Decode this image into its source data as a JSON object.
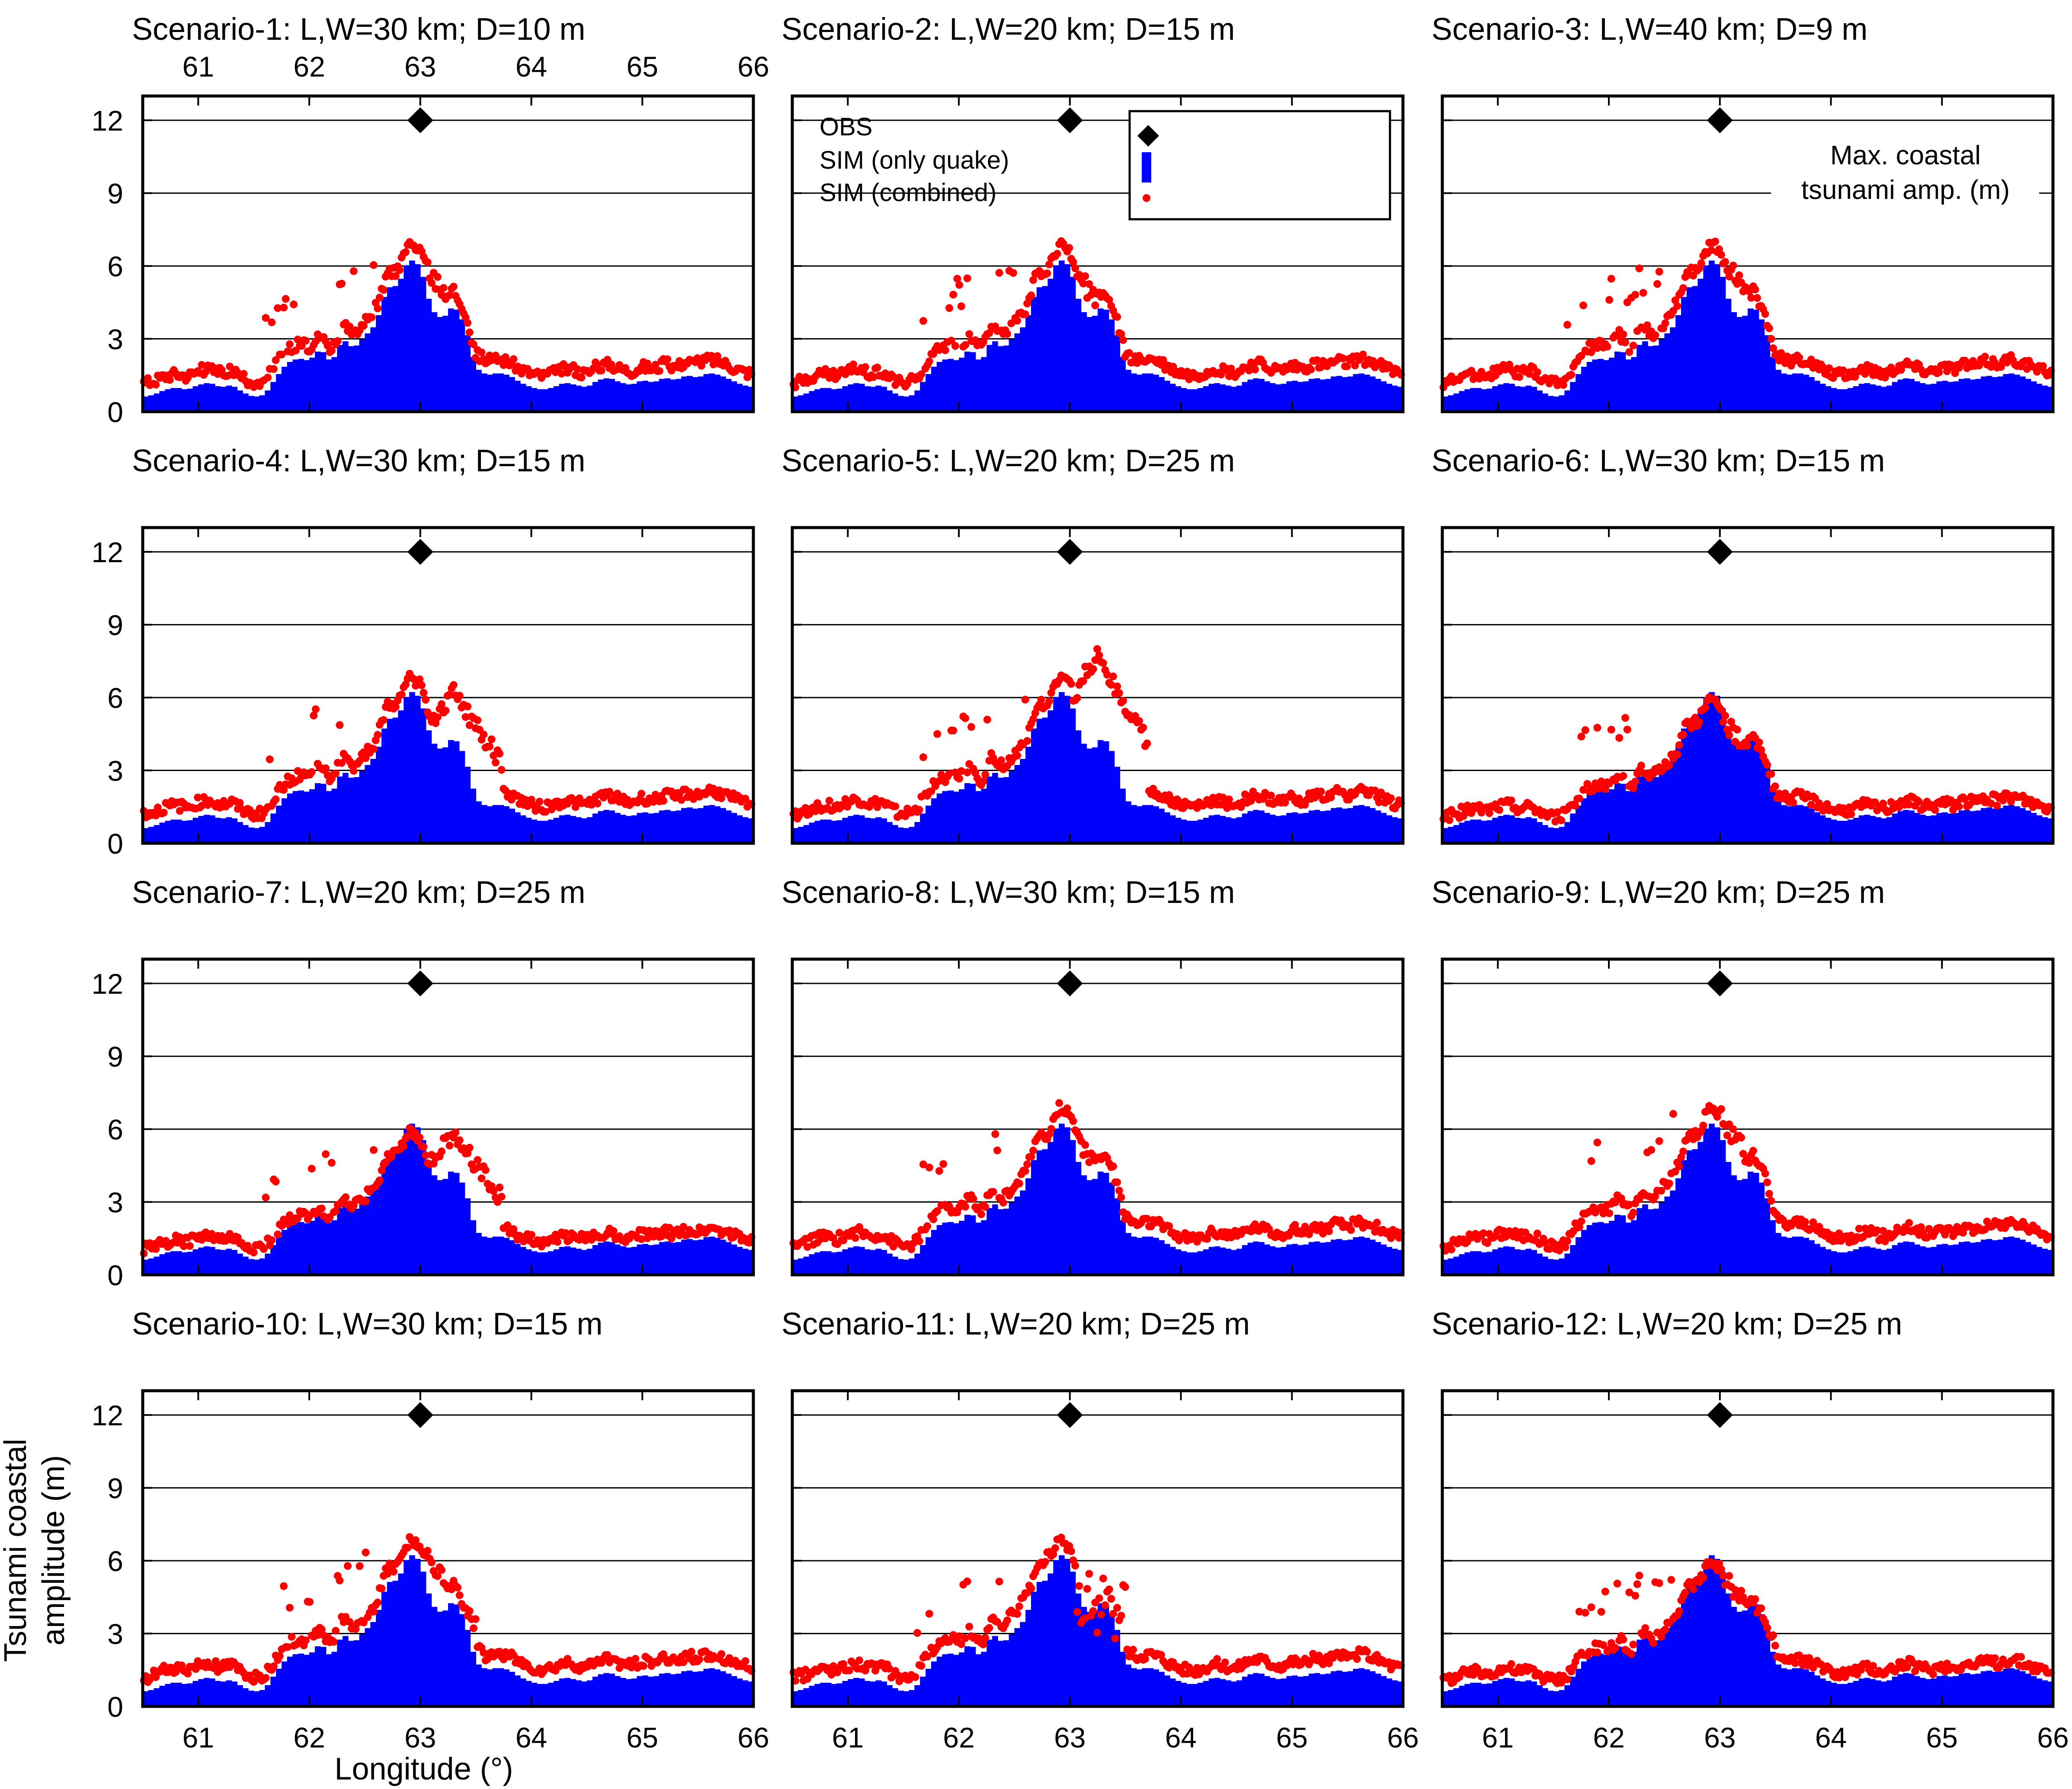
{
  "figure": {
    "y_axis_label_line1": "Tsunami coastal",
    "y_axis_label_line2": "amplitude (m)",
    "x_axis_label": "Longitude (°)",
    "annotation_line1": "Max. coastal",
    "annotation_line2": "tsunami amp. (m)",
    "legend": [
      {
        "label": "OBS",
        "marker": "diamond",
        "color": "#000000"
      },
      {
        "label": "SIM (only quake)",
        "marker": "bar",
        "color": "#0000ff"
      },
      {
        "label": "SIM (combined)",
        "marker": "dot",
        "color": "#ff0000"
      }
    ],
    "colors": {
      "obs": "#000000",
      "quake": "#0000ff",
      "combined": "#ff0000",
      "grid": "#000000"
    }
  },
  "chart_data": [
    {
      "type": "bar",
      "title": "Scenario-1: L,W=30 km; D=10 m",
      "scenario": 1,
      "xlim": [
        60.5,
        66
      ],
      "ylim": [
        0,
        13
      ],
      "x_ticks": [
        61,
        62,
        63,
        64,
        65,
        66
      ],
      "y_ticks": [
        0,
        3,
        6,
        9,
        12
      ],
      "obs": {
        "x": 63,
        "y": 12
      },
      "combined_peak": 7.1,
      "combined_peak_x": 62.95,
      "combined_profile": "base"
    },
    {
      "type": "bar",
      "title": "Scenario-2: L,W=20 km; D=15 m",
      "scenario": 2,
      "xlim": [
        60.5,
        66
      ],
      "ylim": [
        0,
        13
      ],
      "x_ticks": [
        61,
        62,
        63,
        64,
        65,
        66
      ],
      "y_ticks": [
        0,
        3,
        6,
        9,
        12
      ],
      "obs": {
        "x": 63,
        "y": 12
      },
      "combined_peak": 6.9,
      "combined_peak_x": 62.95,
      "combined_profile": "base"
    },
    {
      "type": "bar",
      "title": "Scenario-3: L,W=40 km; D=9 m",
      "scenario": 3,
      "xlim": [
        60.5,
        66
      ],
      "ylim": [
        0,
        13
      ],
      "x_ticks": [
        61,
        62,
        63,
        64,
        65,
        66
      ],
      "y_ticks": [
        0,
        3,
        6,
        9,
        12
      ],
      "obs": {
        "x": 63,
        "y": 12
      },
      "combined_peak": 7.3,
      "combined_peak_x": 62.95,
      "combined_profile": "base"
    },
    {
      "type": "bar",
      "title": "Scenario-4: L,W=30 km; D=15 m",
      "scenario": 4,
      "xlim": [
        60.5,
        66
      ],
      "ylim": [
        0,
        13
      ],
      "x_ticks": [
        61,
        62,
        63,
        64,
        65,
        66
      ],
      "y_ticks": [
        0,
        3,
        6,
        9,
        12
      ],
      "obs": {
        "x": 63,
        "y": 12
      },
      "combined_peak": 6.6,
      "combined_peak_x": 63.3,
      "combined_profile": "shifted"
    },
    {
      "type": "bar",
      "title": "Scenario-5: L,W=20 km; D=25 m",
      "scenario": 5,
      "xlim": [
        60.5,
        66
      ],
      "ylim": [
        0,
        13
      ],
      "x_ticks": [
        61,
        62,
        63,
        64,
        65,
        66
      ],
      "y_ticks": [
        0,
        3,
        6,
        9,
        12
      ],
      "obs": {
        "x": 63,
        "y": 12
      },
      "combined_peak": 8.2,
      "combined_peak_x": 63.25,
      "combined_profile": "shifted"
    },
    {
      "type": "bar",
      "title": "Scenario-6: L,W=30 km; D=15 m",
      "scenario": 6,
      "xlim": [
        60.5,
        66
      ],
      "ylim": [
        0,
        13
      ],
      "x_ticks": [
        61,
        62,
        63,
        64,
        65,
        66
      ],
      "y_ticks": [
        0,
        3,
        6,
        9,
        12
      ],
      "obs": {
        "x": 63,
        "y": 12
      },
      "combined_peak": 5.6,
      "combined_peak_x": 63.0,
      "combined_profile": "low"
    },
    {
      "type": "bar",
      "title": "Scenario-7: L,W=20 km; D=25 m",
      "scenario": 7,
      "xlim": [
        60.5,
        66
      ],
      "ylim": [
        0,
        13
      ],
      "x_ticks": [
        61,
        62,
        63,
        64,
        65,
        66
      ],
      "y_ticks": [
        0,
        3,
        6,
        9,
        12
      ],
      "obs": {
        "x": 63,
        "y": 12
      },
      "combined_peak": 6.2,
      "combined_peak_x": 63.3,
      "combined_profile": "low"
    },
    {
      "type": "bar",
      "title": "Scenario-8: L,W=30 km; D=15 m",
      "scenario": 8,
      "xlim": [
        60.5,
        66
      ],
      "ylim": [
        0,
        13
      ],
      "x_ticks": [
        61,
        62,
        63,
        64,
        65,
        66
      ],
      "y_ticks": [
        0,
        3,
        6,
        9,
        12
      ],
      "obs": {
        "x": 63,
        "y": 12
      },
      "combined_peak": 6.9,
      "combined_peak_x": 62.95,
      "combined_profile": "base"
    },
    {
      "type": "bar",
      "title": "Scenario-9: L,W=20 km; D=25 m",
      "scenario": 9,
      "xlim": [
        60.5,
        66
      ],
      "ylim": [
        0,
        13
      ],
      "x_ticks": [
        61,
        62,
        63,
        64,
        65,
        66
      ],
      "y_ticks": [
        0,
        3,
        6,
        9,
        12
      ],
      "obs": {
        "x": 63,
        "y": 12
      },
      "combined_peak": 7.0,
      "combined_peak_x": 63.0,
      "combined_profile": "base"
    },
    {
      "type": "bar",
      "title": "Scenario-10: L,W=30 km; D=15 m",
      "scenario": 10,
      "xlim": [
        60.5,
        66
      ],
      "ylim": [
        0,
        13
      ],
      "x_ticks": [
        61,
        62,
        63,
        64,
        65,
        66
      ],
      "y_ticks": [
        0,
        3,
        6,
        9,
        12
      ],
      "obs": {
        "x": 63,
        "y": 12
      },
      "combined_peak": 6.7,
      "combined_peak_x": 63.05,
      "combined_profile": "sharp"
    },
    {
      "type": "bar",
      "title": "Scenario-11: L,W=20 km; D=25 m",
      "scenario": 11,
      "xlim": [
        60.5,
        66
      ],
      "ylim": [
        0,
        13
      ],
      "x_ticks": [
        61,
        62,
        63,
        64,
        65,
        66
      ],
      "y_ticks": [
        0,
        3,
        6,
        9,
        12
      ],
      "obs": {
        "x": 63,
        "y": 12
      },
      "combined_peak": 7.1,
      "combined_peak_x": 62.9,
      "combined_profile": "split"
    },
    {
      "type": "bar",
      "title": "Scenario-12: L,W=20 km; D=25 m",
      "scenario": 12,
      "xlim": [
        60.5,
        66
      ],
      "ylim": [
        0,
        13
      ],
      "x_ticks": [
        61,
        62,
        63,
        64,
        65,
        66
      ],
      "y_ticks": [
        0,
        3,
        6,
        9,
        12
      ],
      "obs": {
        "x": 63,
        "y": 12
      },
      "combined_peak": 5.6,
      "combined_peak_x": 63.05,
      "combined_profile": "low"
    }
  ],
  "quake_profile": {
    "x": [
      60.5,
      60.6,
      60.7,
      60.8,
      60.9,
      61.0,
      61.1,
      61.2,
      61.3,
      61.4,
      61.5,
      61.6,
      61.7,
      61.8,
      61.9,
      62.0,
      62.1,
      62.2,
      62.3,
      62.4,
      62.5,
      62.6,
      62.7,
      62.8,
      62.9,
      63.0,
      63.1,
      63.2,
      63.3,
      63.4,
      63.5,
      63.6,
      63.7,
      63.8,
      63.9,
      64.0,
      64.1,
      64.2,
      64.3,
      64.4,
      64.5,
      64.6,
      64.7,
      64.8,
      64.9,
      65.0,
      65.1,
      65.2,
      65.3,
      65.4,
      65.5,
      65.6,
      65.7,
      65.8,
      65.9,
      66.0
    ],
    "y": [
      0.6,
      0.7,
      0.9,
      1.0,
      0.9,
      1.1,
      1.2,
      1.0,
      1.1,
      0.8,
      0.6,
      0.7,
      1.4,
      2.0,
      2.2,
      2.1,
      2.6,
      2.0,
      3.0,
      2.6,
      3.1,
      3.6,
      5.1,
      5.2,
      6.3,
      6.0,
      4.2,
      3.8,
      4.4,
      3.6,
      1.8,
      1.5,
      1.6,
      1.5,
      1.2,
      1.0,
      0.9,
      1.0,
      1.2,
      1.1,
      1.0,
      1.3,
      1.4,
      1.2,
      1.1,
      1.3,
      1.2,
      1.4,
      1.3,
      1.5,
      1.4,
      1.6,
      1.5,
      1.3,
      1.1,
      1.0
    ]
  }
}
